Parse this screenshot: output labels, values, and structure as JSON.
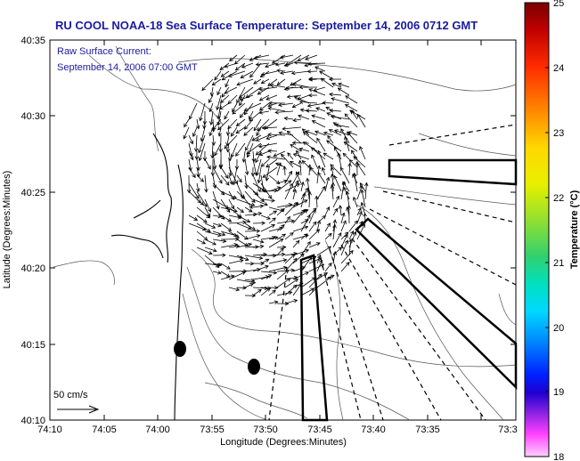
{
  "header": {
    "title": "RU COOL  NOAA-18  Sea Surface Temperature:  September 14, 2006 0712 GMT"
  },
  "inset": {
    "line1": "Raw Surface Current:",
    "line2": "September 14, 2006 07:00 GMT"
  },
  "scale": {
    "label": "50 cm/s"
  },
  "axes": {
    "xlabel": "Longitude (Degrees:Minutes)",
    "ylabel": "Latitude (Degrees:Minutes)",
    "xticks": [
      "74:10",
      "74:05",
      "74:00",
      "73:55",
      "73:50",
      "73:45",
      "73:40",
      "73:35",
      "73:3"
    ],
    "yticks": [
      "40:35",
      "40:30",
      "40:25",
      "40:20",
      "40:15",
      "40:10"
    ]
  },
  "colorbar": {
    "label": "Temperature (°C)",
    "ticks": [
      "25",
      "24",
      "23",
      "22",
      "21",
      "20",
      "19",
      "18"
    ],
    "min": 18,
    "max": 25
  }
}
